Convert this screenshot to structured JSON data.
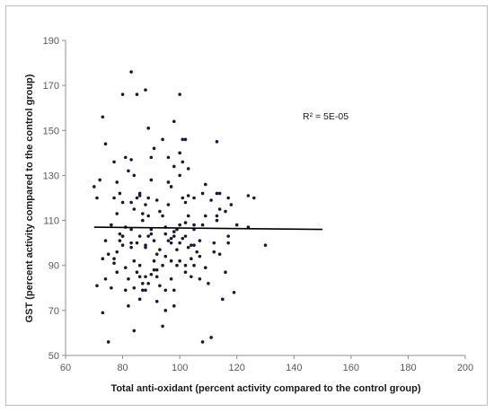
{
  "chart_data": {
    "type": "scatter",
    "title": "",
    "xlabel": "Total anti-oxidant (percent activity compared to the control group)",
    "ylabel": "GST (percent activity compared to the control group)",
    "xlim": [
      60,
      200
    ],
    "ylim": [
      50,
      190
    ],
    "xticks": [
      60,
      80,
      100,
      120,
      140,
      160,
      180,
      200
    ],
    "yticks": [
      50,
      70,
      90,
      110,
      130,
      150,
      170,
      190
    ],
    "grid": false,
    "legend": "none",
    "marker_color": "#1a1a2e",
    "trendline": {
      "x": [
        70,
        150
      ],
      "y": [
        107,
        106
      ],
      "color": "#000000"
    },
    "annotation": "R² = 5E-05",
    "points": [
      [
        70,
        125
      ],
      [
        71,
        120
      ],
      [
        71,
        81
      ],
      [
        72,
        128
      ],
      [
        73,
        93
      ],
      [
        73,
        69
      ],
      [
        73,
        156
      ],
      [
        74,
        144
      ],
      [
        74,
        101
      ],
      [
        74,
        84
      ],
      [
        75,
        56
      ],
      [
        75,
        95
      ],
      [
        76,
        108
      ],
      [
        76,
        80
      ],
      [
        77,
        136
      ],
      [
        77,
        93
      ],
      [
        77,
        120
      ],
      [
        77,
        91
      ],
      [
        78,
        87
      ],
      [
        78,
        127
      ],
      [
        78,
        96
      ],
      [
        78,
        113
      ],
      [
        79,
        122
      ],
      [
        79,
        101
      ],
      [
        79,
        104
      ],
      [
        80,
        103
      ],
      [
        80,
        118
      ],
      [
        80,
        166
      ],
      [
        80,
        99
      ],
      [
        80,
        103
      ],
      [
        81,
        107
      ],
      [
        81,
        89
      ],
      [
        81,
        79
      ],
      [
        81,
        138
      ],
      [
        82,
        72
      ],
      [
        82,
        84
      ],
      [
        82,
        132
      ],
      [
        83,
        137
      ],
      [
        83,
        118
      ],
      [
        83,
        176
      ],
      [
        83,
        98
      ],
      [
        83,
        100
      ],
      [
        83,
        106
      ],
      [
        84,
        61
      ],
      [
        84,
        92
      ],
      [
        84,
        80
      ],
      [
        84,
        130
      ],
      [
        84,
        115
      ],
      [
        85,
        166
      ],
      [
        85,
        120
      ],
      [
        85,
        100
      ],
      [
        85,
        87
      ],
      [
        86,
        103
      ],
      [
        86,
        122
      ],
      [
        86,
        121
      ],
      [
        86,
        75
      ],
      [
        86,
        85
      ],
      [
        86,
        90
      ],
      [
        87,
        113
      ],
      [
        87,
        110
      ],
      [
        87,
        79
      ],
      [
        87,
        82
      ],
      [
        88,
        168
      ],
      [
        88,
        117
      ],
      [
        88,
        98
      ],
      [
        88,
        85
      ],
      [
        88,
        79
      ],
      [
        89,
        103
      ],
      [
        89,
        120
      ],
      [
        89,
        151
      ],
      [
        89,
        112
      ],
      [
        89,
        82
      ],
      [
        90,
        104
      ],
      [
        90,
        128
      ],
      [
        90,
        138
      ],
      [
        90,
        106
      ],
      [
        90,
        86
      ],
      [
        91,
        92
      ],
      [
        91,
        142
      ],
      [
        91,
        88
      ],
      [
        91,
        101
      ],
      [
        92,
        119
      ],
      [
        92,
        95
      ],
      [
        92,
        85
      ],
      [
        92,
        88
      ],
      [
        93,
        114
      ],
      [
        93,
        81
      ],
      [
        93,
        97
      ],
      [
        94,
        112
      ],
      [
        94,
        63
      ],
      [
        94,
        90
      ],
      [
        94,
        146
      ],
      [
        95,
        107
      ],
      [
        95,
        104
      ],
      [
        95,
        70
      ],
      [
        95,
        94
      ],
      [
        95,
        79
      ],
      [
        96,
        117
      ],
      [
        96,
        138
      ],
      [
        96,
        101
      ],
      [
        96,
        127
      ],
      [
        97,
        125
      ],
      [
        97,
        102
      ],
      [
        97,
        100
      ],
      [
        97,
        92
      ],
      [
        97,
        84
      ],
      [
        98,
        134
      ],
      [
        98,
        105
      ],
      [
        98,
        154
      ],
      [
        98,
        72
      ],
      [
        98,
        79
      ],
      [
        98,
        103
      ],
      [
        99,
        90
      ],
      [
        99,
        97
      ],
      [
        99,
        106
      ],
      [
        100,
        166
      ],
      [
        100,
        140
      ],
      [
        100,
        130
      ],
      [
        100,
        108
      ],
      [
        100,
        92
      ],
      [
        100,
        100
      ],
      [
        101,
        146
      ],
      [
        101,
        102
      ],
      [
        101,
        136
      ],
      [
        101,
        120
      ],
      [
        102,
        118
      ],
      [
        102,
        109
      ],
      [
        102,
        146
      ],
      [
        102,
        103
      ],
      [
        102,
        90
      ],
      [
        102,
        87
      ],
      [
        103,
        121
      ],
      [
        103,
        133
      ],
      [
        103,
        98
      ],
      [
        103,
        112
      ],
      [
        104,
        85
      ],
      [
        104,
        99
      ],
      [
        104,
        93
      ],
      [
        105,
        99
      ],
      [
        105,
        120
      ],
      [
        105,
        106
      ],
      [
        105,
        108
      ],
      [
        105,
        90
      ],
      [
        106,
        96
      ],
      [
        107,
        101
      ],
      [
        107,
        84
      ],
      [
        107,
        94
      ],
      [
        108,
        122
      ],
      [
        108,
        108
      ],
      [
        108,
        56
      ],
      [
        109,
        112
      ],
      [
        109,
        126
      ],
      [
        109,
        89
      ],
      [
        110,
        82
      ],
      [
        111,
        58
      ],
      [
        111,
        119
      ],
      [
        112,
        96
      ],
      [
        112,
        100
      ],
      [
        113,
        145
      ],
      [
        113,
        122
      ],
      [
        113,
        110
      ],
      [
        114,
        122
      ],
      [
        114,
        115
      ],
      [
        114,
        95
      ],
      [
        115,
        75
      ],
      [
        116,
        87
      ],
      [
        117,
        103
      ],
      [
        117,
        100
      ],
      [
        117,
        120
      ],
      [
        118,
        117
      ],
      [
        119,
        78
      ],
      [
        120,
        108
      ],
      [
        124,
        107
      ],
      [
        124,
        121
      ],
      [
        126,
        120
      ],
      [
        130,
        99
      ],
      [
        113,
        112
      ],
      [
        116,
        114
      ],
      [
        88,
        99
      ],
      [
        92,
        74
      ]
    ]
  }
}
